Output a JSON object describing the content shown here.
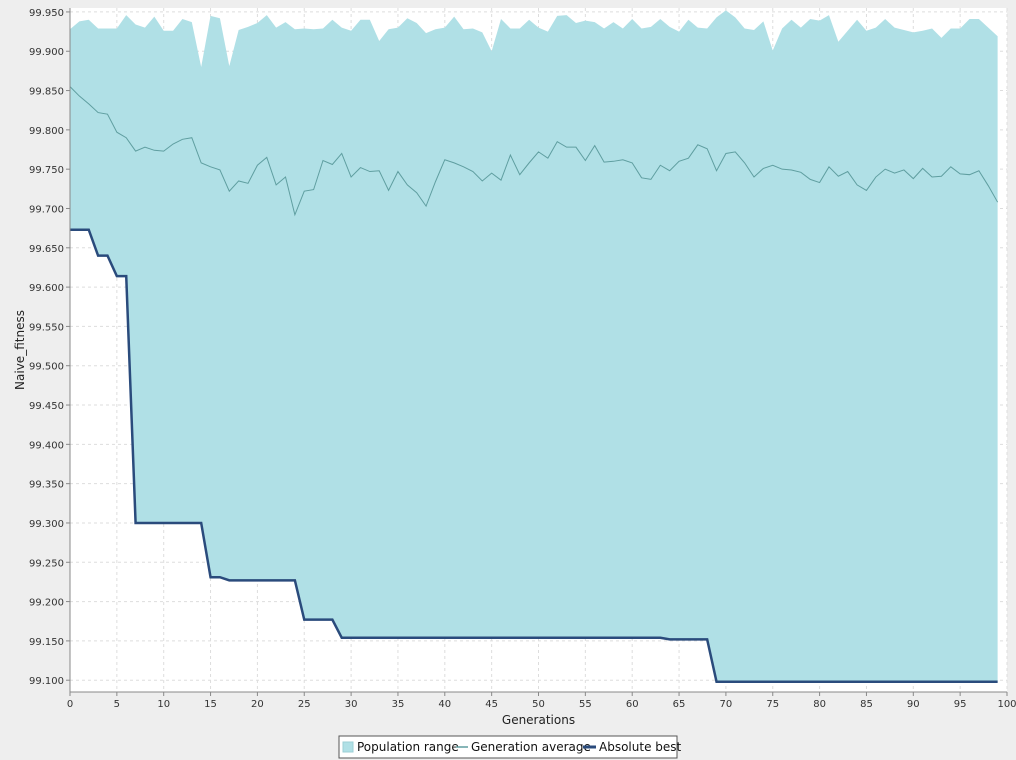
{
  "chart_data": {
    "type": "area",
    "xlabel": "Generations",
    "ylabel": "Naive_fitness",
    "xlim": [
      0,
      100
    ],
    "ylim": [
      99.085,
      99.955
    ],
    "x_ticks": [
      0,
      5,
      10,
      15,
      20,
      25,
      30,
      35,
      40,
      45,
      50,
      55,
      60,
      65,
      70,
      75,
      80,
      85,
      90,
      95,
      100
    ],
    "y_ticks": [
      99.1,
      99.15,
      99.2,
      99.25,
      99.3,
      99.35,
      99.4,
      99.45,
      99.5,
      99.55,
      99.6,
      99.65,
      99.7,
      99.75,
      99.8,
      99.85,
      99.9,
      99.95
    ],
    "grid": true,
    "legend_position": "bottom-center",
    "colors": {
      "band": "#b0e0e6",
      "average": "#5f9ea0",
      "best": "#2a4b7c",
      "plot_bg": "#ffffff",
      "page_bg": "#eeeeee"
    },
    "series": [
      {
        "name": "Population range",
        "kind": "band",
        "upper": [
          99.928,
          99.938,
          99.94,
          99.929,
          99.929,
          99.929,
          99.946,
          99.934,
          99.93,
          99.944,
          99.926,
          99.926,
          99.941,
          99.937,
          99.88,
          99.945,
          99.942,
          99.881,
          99.927,
          99.931,
          99.936,
          99.946,
          99.93,
          99.937,
          99.928,
          99.929,
          99.928,
          99.929,
          99.94,
          99.93,
          99.926,
          99.94,
          99.94,
          99.913,
          99.928,
          99.93,
          99.942,
          99.936,
          99.923,
          99.928,
          99.93,
          99.944,
          99.928,
          99.929,
          99.924,
          99.9,
          99.941,
          99.929,
          99.929,
          99.94,
          99.93,
          99.925,
          99.945,
          99.946,
          99.936,
          99.939,
          99.937,
          99.929,
          99.937,
          99.929,
          99.941,
          99.929,
          99.931,
          99.941,
          99.931,
          99.925,
          99.94,
          99.93,
          99.929,
          99.943,
          99.952,
          99.943,
          99.929,
          99.927,
          99.938,
          99.901,
          99.929,
          99.94,
          99.93,
          99.941,
          99.939,
          99.946,
          99.912,
          99.926,
          99.94,
          99.926,
          99.93,
          99.941,
          99.93,
          99.927,
          99.924,
          99.926,
          99.929,
          99.917,
          99.929,
          99.929,
          99.941,
          99.941,
          99.93,
          99.919
        ],
        "lower": [
          99.673,
          99.673,
          99.673,
          99.64,
          99.64,
          99.614,
          99.614,
          99.3,
          99.3,
          99.3,
          99.3,
          99.3,
          99.3,
          99.3,
          99.3,
          99.231,
          99.231,
          99.227,
          99.227,
          99.227,
          99.227,
          99.227,
          99.227,
          99.227,
          99.227,
          99.177,
          99.177,
          99.177,
          99.177,
          99.154,
          99.154,
          99.154,
          99.154,
          99.154,
          99.154,
          99.154,
          99.154,
          99.154,
          99.154,
          99.154,
          99.154,
          99.154,
          99.154,
          99.154,
          99.154,
          99.154,
          99.154,
          99.154,
          99.154,
          99.154,
          99.154,
          99.154,
          99.154,
          99.154,
          99.154,
          99.154,
          99.154,
          99.154,
          99.154,
          99.154,
          99.154,
          99.154,
          99.154,
          99.154,
          99.152,
          99.152,
          99.152,
          99.152,
          99.152,
          99.098,
          99.098,
          99.098,
          99.098,
          99.098,
          99.098,
          99.098,
          99.098,
          99.098,
          99.098,
          99.098,
          99.098,
          99.098,
          99.098,
          99.098,
          99.098,
          99.098,
          99.098,
          99.098,
          99.098,
          99.098,
          99.098,
          99.098,
          99.098,
          99.098,
          99.098,
          99.098,
          99.098,
          99.098,
          99.098,
          99.098
        ]
      },
      {
        "name": "Generation average",
        "kind": "line",
        "values": [
          99.855,
          99.843,
          99.833,
          99.822,
          99.82,
          99.797,
          99.79,
          99.773,
          99.778,
          99.774,
          99.773,
          99.782,
          99.788,
          99.79,
          99.758,
          99.753,
          99.749,
          99.722,
          99.735,
          99.732,
          99.755,
          99.765,
          99.73,
          99.74,
          99.692,
          99.722,
          99.724,
          99.761,
          99.756,
          99.77,
          99.74,
          99.752,
          99.747,
          99.748,
          99.723,
          99.747,
          99.73,
          99.72,
          99.703,
          99.734,
          99.762,
          99.758,
          99.753,
          99.747,
          99.735,
          99.745,
          99.736,
          99.768,
          99.743,
          99.758,
          99.772,
          99.764,
          99.785,
          99.778,
          99.778,
          99.761,
          99.78,
          99.759,
          99.76,
          99.762,
          99.758,
          99.739,
          99.737,
          99.755,
          99.748,
          99.76,
          99.764,
          99.781,
          99.776,
          99.748,
          99.77,
          99.772,
          99.758,
          99.74,
          99.751,
          99.755,
          99.75,
          99.749,
          99.746,
          99.737,
          99.733,
          99.753,
          99.741,
          99.747,
          99.73,
          99.723,
          99.74,
          99.75,
          99.745,
          99.749,
          99.738,
          99.751,
          99.74,
          99.741,
          99.753,
          99.744,
          99.743,
          99.748,
          99.729,
          99.708
        ]
      },
      {
        "name": "Absolute best",
        "kind": "step",
        "values": [
          99.673,
          99.673,
          99.673,
          99.64,
          99.64,
          99.614,
          99.614,
          99.3,
          99.3,
          99.3,
          99.3,
          99.3,
          99.3,
          99.3,
          99.3,
          99.231,
          99.231,
          99.227,
          99.227,
          99.227,
          99.227,
          99.227,
          99.227,
          99.227,
          99.227,
          99.177,
          99.177,
          99.177,
          99.177,
          99.154,
          99.154,
          99.154,
          99.154,
          99.154,
          99.154,
          99.154,
          99.154,
          99.154,
          99.154,
          99.154,
          99.154,
          99.154,
          99.154,
          99.154,
          99.154,
          99.154,
          99.154,
          99.154,
          99.154,
          99.154,
          99.154,
          99.154,
          99.154,
          99.154,
          99.154,
          99.154,
          99.154,
          99.154,
          99.154,
          99.154,
          99.154,
          99.154,
          99.154,
          99.154,
          99.152,
          99.152,
          99.152,
          99.152,
          99.152,
          99.098,
          99.098,
          99.098,
          99.098,
          99.098,
          99.098,
          99.098,
          99.098,
          99.098,
          99.098,
          99.098,
          99.098,
          99.098,
          99.098,
          99.098,
          99.098,
          99.098,
          99.098,
          99.098,
          99.098,
          99.098,
          99.098,
          99.098,
          99.098,
          99.098,
          99.098,
          99.098,
          99.098,
          99.098,
          99.098,
          99.098
        ]
      }
    ]
  }
}
